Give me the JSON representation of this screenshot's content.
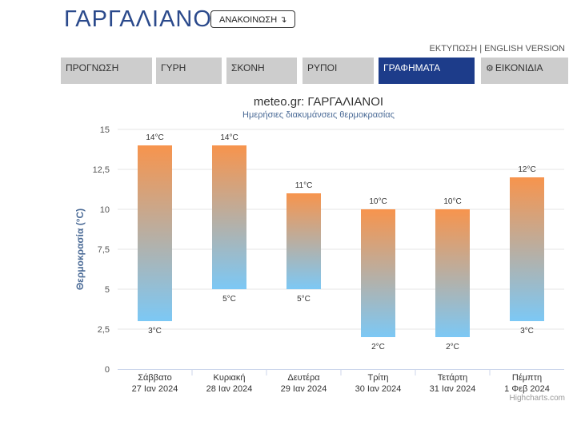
{
  "header": {
    "city": "ΓΑΡΓΑΛΙΑΝΟΙ",
    "announce_label": "ΑΝΑΚΟΙΝΩΣΗ ↴",
    "print_label": "ΕΚΤΥΠΩΣΗ",
    "separator": "|",
    "english_label": "ENGLISH VERSION"
  },
  "tabs": [
    {
      "label": "ΠΡΟΓΝΩΣΗ"
    },
    {
      "label": "ΓΥΡΗ"
    },
    {
      "label": "ΣΚΟΝΗ"
    },
    {
      "label": "ΡΥΠΟΙ"
    },
    {
      "label": "ΓΡΑΦΗΜΑΤΑ"
    },
    {
      "label": "ΕΙΚΟΝΙΔΙΑ",
      "icon": "gear-icon"
    }
  ],
  "colors": {
    "accent": "#1d3c8a",
    "bar_top": "#f7944d",
    "bar_bottom": "#7cc8f5",
    "axis_title": "#4a6a96"
  },
  "chart_data": {
    "type": "bar",
    "title": "meteo.gr: ΓΑΡΓΑΛΙΑΝΟΙ",
    "subtitle": "Ημερήσιες διακυμάνσεις θερμοκρασίας",
    "ylabel": "Θερμοκρασία (°C)",
    "ylim": [
      0,
      15
    ],
    "yticks": [
      "0",
      "2,5",
      "5",
      "7,5",
      "10",
      "12,5",
      "15"
    ],
    "categories": [
      {
        "day": "Σάββατο",
        "date": "27 Ιαν 2024"
      },
      {
        "day": "Κυριακή",
        "date": "28 Ιαν 2024"
      },
      {
        "day": "Δευτέρα",
        "date": "29 Ιαν 2024"
      },
      {
        "day": "Τρίτη",
        "date": "30 Ιαν 2024"
      },
      {
        "day": "Τετάρτη",
        "date": "31 Ιαν 2024"
      },
      {
        "day": "Πέμπτη",
        "date": "1 Φεβ 2024"
      }
    ],
    "min": [
      3,
      5,
      5,
      2,
      2,
      3
    ],
    "max": [
      14,
      14,
      11,
      10,
      10,
      12
    ],
    "unit": "°C",
    "grid": true
  },
  "credits": "Highcharts.com"
}
